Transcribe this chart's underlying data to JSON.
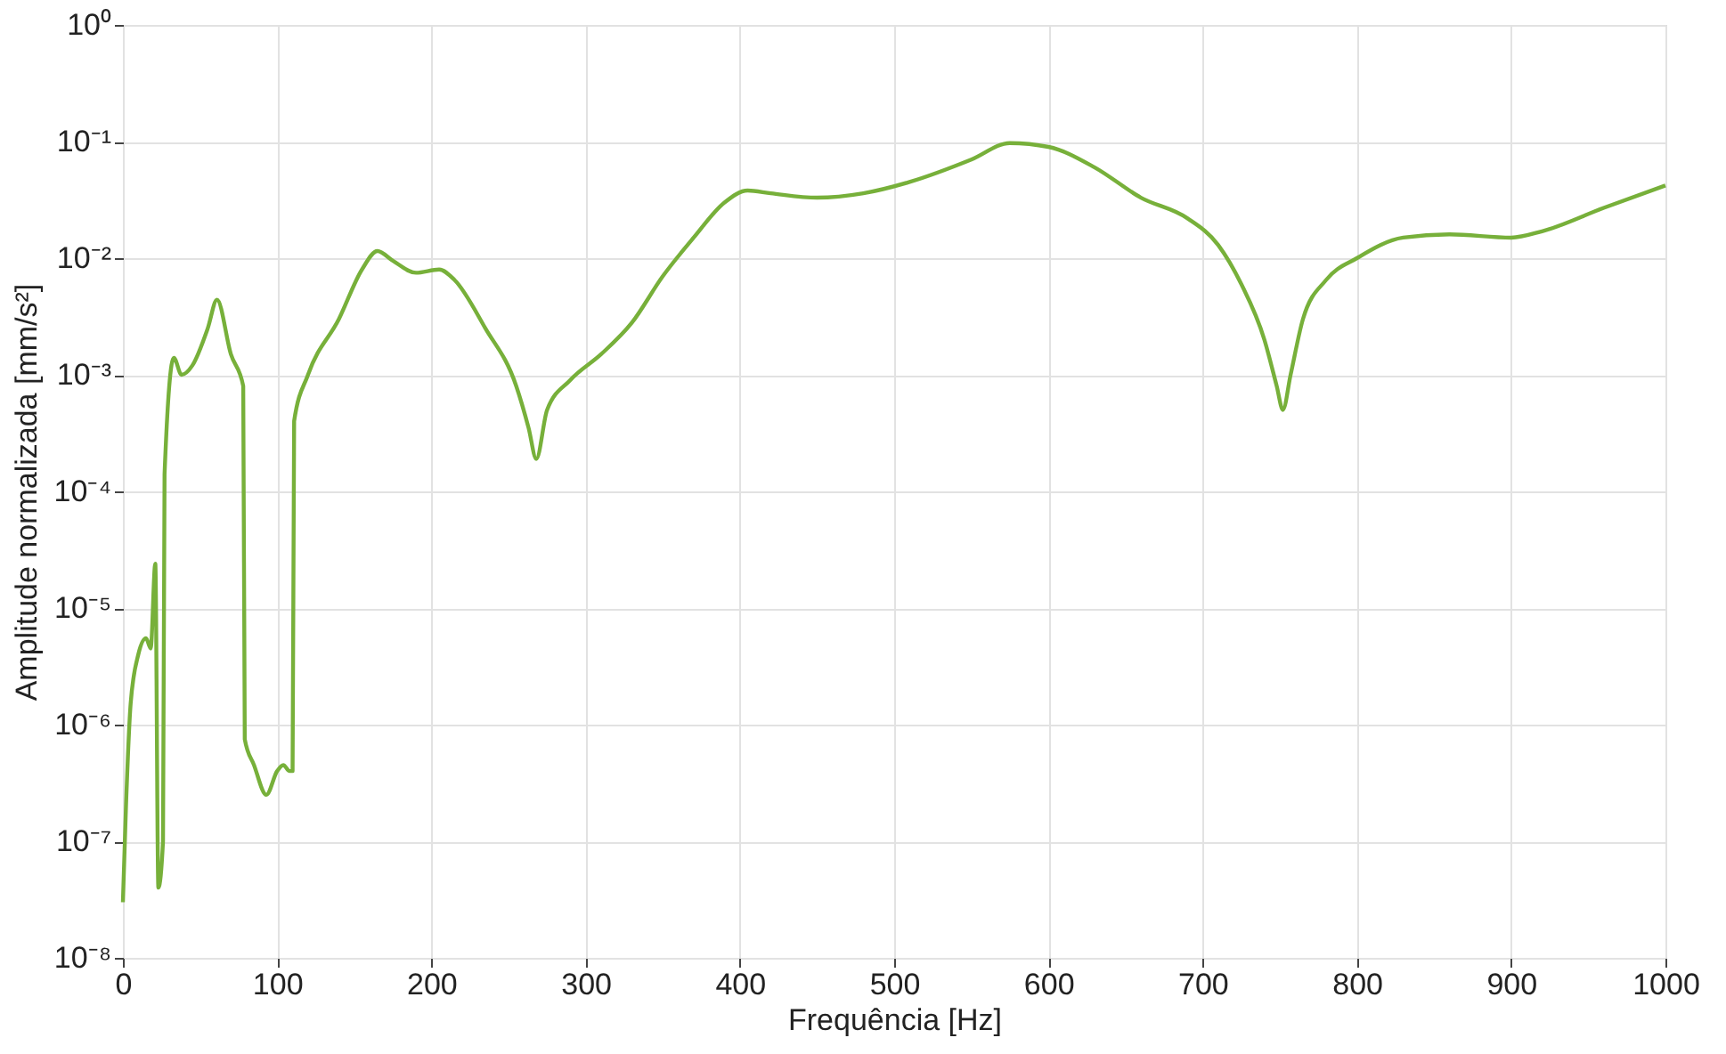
{
  "chart_data": {
    "type": "line",
    "xlabel": "Frequência [Hz]",
    "ylabel": "Amplitude normalizada [mm/s²]",
    "log": "y",
    "grid": true,
    "xlim": [
      0,
      1000
    ],
    "ylim": [
      1e-08,
      1
    ],
    "xticks": [
      0,
      100,
      200,
      300,
      400,
      500,
      600,
      700,
      800,
      900,
      1000
    ],
    "yticks": [
      {
        "value": 1e-08,
        "label": "10⁻⁸"
      },
      {
        "value": 1e-07,
        "label": "10⁻⁷"
      },
      {
        "value": 1e-06,
        "label": "10⁻⁶"
      },
      {
        "value": 1e-05,
        "label": "10⁻⁵"
      },
      {
        "value": 0.0001,
        "label": "10⁻⁴"
      },
      {
        "value": 0.001,
        "label": "10⁻³"
      },
      {
        "value": 0.01,
        "label": "10⁻²"
      },
      {
        "value": 0.1,
        "label": "10⁻¹"
      },
      {
        "value": 1,
        "label": "10⁰"
      }
    ],
    "series": [
      {
        "color": "#77b03a",
        "x": [
          0,
          2,
          5,
          10,
          15,
          18,
          21,
          23,
          26,
          27,
          33,
          38,
          45,
          55,
          61,
          70,
          78,
          79,
          85,
          93,
          100,
          104,
          108,
          110,
          111,
          120,
          140,
          155,
          165,
          175,
          190,
          205,
          215,
          235,
          255,
          263,
          268,
          275,
          290,
          310,
          330,
          350,
          370,
          390,
          405,
          420,
          450,
          480,
          510,
          550,
          575,
          600,
          630,
          660,
          690,
          710,
          725,
          740,
          748,
          752,
          757,
          765,
          780,
          800,
          830,
          860,
          900,
          920,
          960,
          1000
        ],
        "values": [
          3e-08,
          2e-07,
          1.5e-06,
          4e-06,
          5.5e-06,
          4.5e-06,
          2.4e-05,
          4e-08,
          1e-07,
          0.00014,
          0.0014,
          0.001,
          0.0012,
          0.0025,
          0.0044,
          0.0015,
          0.0008,
          7.5e-07,
          4.5e-07,
          2.5e-07,
          4e-07,
          4.5e-07,
          4e-07,
          4e-07,
          0.0004,
          0.001,
          0.003,
          0.008,
          0.0115,
          0.0095,
          0.0075,
          0.008,
          0.0065,
          0.0025,
          0.0008,
          0.00035,
          0.00019,
          0.0005,
          0.0009,
          0.0015,
          0.0028,
          0.007,
          0.015,
          0.03,
          0.038,
          0.036,
          0.033,
          0.036,
          0.045,
          0.07,
          0.097,
          0.09,
          0.06,
          0.033,
          0.022,
          0.013,
          0.006,
          0.002,
          0.0008,
          0.0005,
          0.001,
          0.003,
          0.0065,
          0.01,
          0.015,
          0.016,
          0.015,
          0.017,
          0.027,
          0.042
        ]
      }
    ]
  }
}
